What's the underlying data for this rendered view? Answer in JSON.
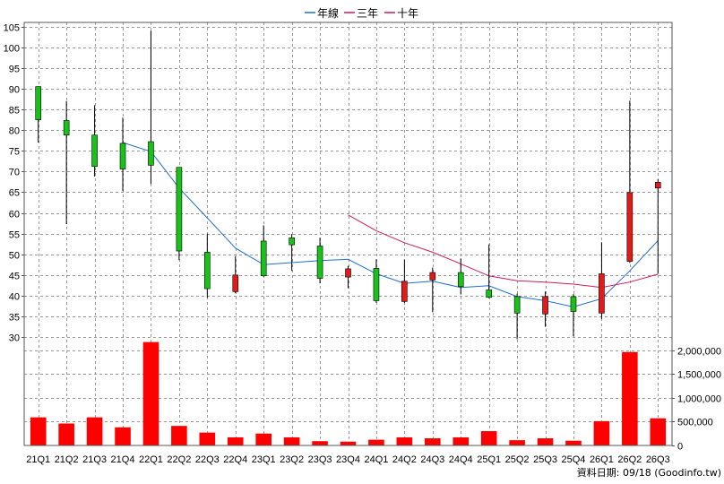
{
  "legend": [
    {
      "label": "年線",
      "color": "#1f6fd0"
    },
    {
      "label": "三年",
      "color": "#cc1b5a"
    },
    {
      "label": "十年",
      "color": "#cc1b5a"
    }
  ],
  "footer": "資料日期: 09/18   (Goodinfo.tw)",
  "colors": {
    "up": "#e11a1a",
    "down": "#19c219",
    "volume": "#ff0000",
    "year_line": "#1f6fd0",
    "three_year_line": "#d2185c",
    "background": "#ffffff"
  },
  "chart_data": [
    {
      "type": "candlestick",
      "title": "",
      "grid": true,
      "legend_position": "top-center",
      "y_axis": "left",
      "ylim": [
        27,
        106
      ],
      "y_ticks": [
        30,
        35,
        40,
        45,
        50,
        55,
        60,
        65,
        70,
        75,
        80,
        85,
        90,
        95,
        100,
        105
      ],
      "categories": [
        "21Q1",
        "21Q2",
        "21Q3",
        "21Q4",
        "22Q1",
        "22Q2",
        "22Q3",
        "22Q4",
        "23Q1",
        "23Q2",
        "23Q3",
        "23Q4",
        "24Q1",
        "24Q2",
        "24Q3",
        "24Q4",
        "25Q1",
        "25Q2",
        "25Q3",
        "25Q4",
        "26Q1",
        "26Q2",
        "26Q3"
      ],
      "ohlc": [
        {
          "open": 82.5,
          "high": 90.5,
          "low": 77.0,
          "close": 90.5
        },
        {
          "open": 78.8,
          "high": 87.0,
          "low": 57.3,
          "close": 82.3
        },
        {
          "open": 71.2,
          "high": 86.0,
          "low": 68.8,
          "close": 78.8
        },
        {
          "open": 70.6,
          "high": 83.0,
          "low": 65.3,
          "close": 76.8
        },
        {
          "open": 71.5,
          "high": 104.0,
          "low": 67.0,
          "close": 77.2
        },
        {
          "open": 50.8,
          "high": 71.0,
          "low": 48.6,
          "close": 71.0
        },
        {
          "open": 41.7,
          "high": 55.0,
          "low": 39.5,
          "close": 50.5
        },
        {
          "open": 45.0,
          "high": 49.5,
          "low": 40.6,
          "close": 41.0
        },
        {
          "open": 44.8,
          "high": 57.0,
          "low": 44.6,
          "close": 53.2
        },
        {
          "open": 52.3,
          "high": 54.9,
          "low": 46.0,
          "close": 54.0
        },
        {
          "open": 44.2,
          "high": 54.0,
          "low": 43.0,
          "close": 52.0
        },
        {
          "open": 46.5,
          "high": 47.2,
          "low": 41.8,
          "close": 44.5
        },
        {
          "open": 38.8,
          "high": 48.8,
          "low": 38.3,
          "close": 46.6
        },
        {
          "open": 43.5,
          "high": 48.7,
          "low": 38.3,
          "close": 38.6
        },
        {
          "open": 45.6,
          "high": 46.8,
          "low": 36.0,
          "close": 43.8
        },
        {
          "open": 42.2,
          "high": 49.0,
          "low": 40.3,
          "close": 45.6
        },
        {
          "open": 39.6,
          "high": 52.4,
          "low": 39.4,
          "close": 41.4
        },
        {
          "open": 35.8,
          "high": 40.5,
          "low": 29.5,
          "close": 39.8
        },
        {
          "open": 39.8,
          "high": 41.0,
          "low": 32.5,
          "close": 35.6
        },
        {
          "open": 36.2,
          "high": 40.4,
          "low": 30.2,
          "close": 39.8
        },
        {
          "open": 45.3,
          "high": 52.9,
          "low": 34.4,
          "close": 35.8
        },
        {
          "open": 64.9,
          "high": 87.1,
          "low": 47.9,
          "close": 48.3
        },
        {
          "open": 67.4,
          "high": 68.1,
          "low": 45.3,
          "close": 66.0
        }
      ],
      "series": [
        {
          "name": "年線",
          "values": [
            null,
            null,
            null,
            77.0,
            74.8,
            66.0,
            58.8,
            51.5,
            47.5,
            48.0,
            48.5,
            48.8,
            45.3,
            43.0,
            43.5,
            42.0,
            42.4,
            39.8,
            38.8,
            37.3,
            39.3,
            46.0,
            53.3
          ]
        },
        {
          "name": "三年",
          "values": [
            null,
            null,
            null,
            null,
            null,
            null,
            null,
            null,
            null,
            null,
            null,
            59.5,
            55.7,
            52.8,
            50.5,
            47.7,
            44.8,
            43.6,
            43.3,
            42.8,
            42.0,
            43.3,
            45.2
          ]
        }
      ]
    },
    {
      "type": "bar",
      "title": "",
      "grid": true,
      "y_axis": "right",
      "ylim": [
        0,
        2200000
      ],
      "y_ticks": [
        0,
        500000,
        1000000,
        1500000,
        2000000
      ],
      "y_tick_labels": [
        "0",
        "500,000",
        "1,000,000",
        "1,500,000",
        "2,000,000"
      ],
      "categories": [
        "21Q1",
        "21Q2",
        "21Q3",
        "21Q4",
        "22Q1",
        "22Q2",
        "22Q3",
        "22Q4",
        "23Q1",
        "23Q2",
        "23Q3",
        "23Q4",
        "24Q1",
        "24Q2",
        "24Q3",
        "24Q4",
        "25Q1",
        "25Q2",
        "25Q3",
        "25Q4",
        "26Q1",
        "26Q2",
        "26Q3"
      ],
      "values": [
        590000,
        460000,
        590000,
        380000,
        2170000,
        410000,
        270000,
        170000,
        250000,
        170000,
        90000,
        80000,
        120000,
        170000,
        150000,
        170000,
        300000,
        110000,
        150000,
        100000,
        510000,
        1960000,
        570000
      ]
    }
  ]
}
